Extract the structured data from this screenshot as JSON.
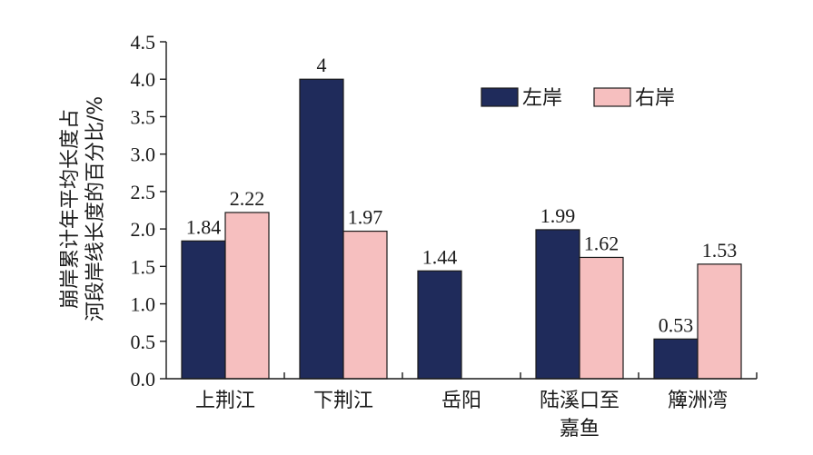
{
  "chart_data": {
    "type": "bar",
    "categories": [
      [
        "上荆江"
      ],
      [
        "下荆江"
      ],
      [
        "岳阳"
      ],
      [
        "陆溪口至",
        "嘉鱼"
      ],
      [
        "簰洲湾"
      ]
    ],
    "series": [
      {
        "name": "左岸",
        "color": "#1f2b5b",
        "values": [
          1.84,
          4.0,
          1.44,
          1.99,
          0.53
        ],
        "labels": [
          "1.84",
          "4",
          "1.44",
          "1.99",
          "0.53"
        ]
      },
      {
        "name": "右岸",
        "color": "#f6bfbf",
        "values": [
          2.22,
          1.97,
          null,
          1.62,
          1.53
        ],
        "labels": [
          "2.22",
          "1.97",
          "",
          "1.62",
          "1.53"
        ]
      }
    ],
    "ylabel_lines": [
      "崩岸累计年平均长度占",
      "河段岸线长度的百分比/%"
    ],
    "ylim": [
      0,
      4.5
    ],
    "yticks": [
      "0.0",
      "0.5",
      "1.0",
      "1.5",
      "2.0",
      "2.5",
      "3.0",
      "3.5",
      "4.0",
      "4.5"
    ],
    "legend_position": "top-right",
    "grid": false
  }
}
